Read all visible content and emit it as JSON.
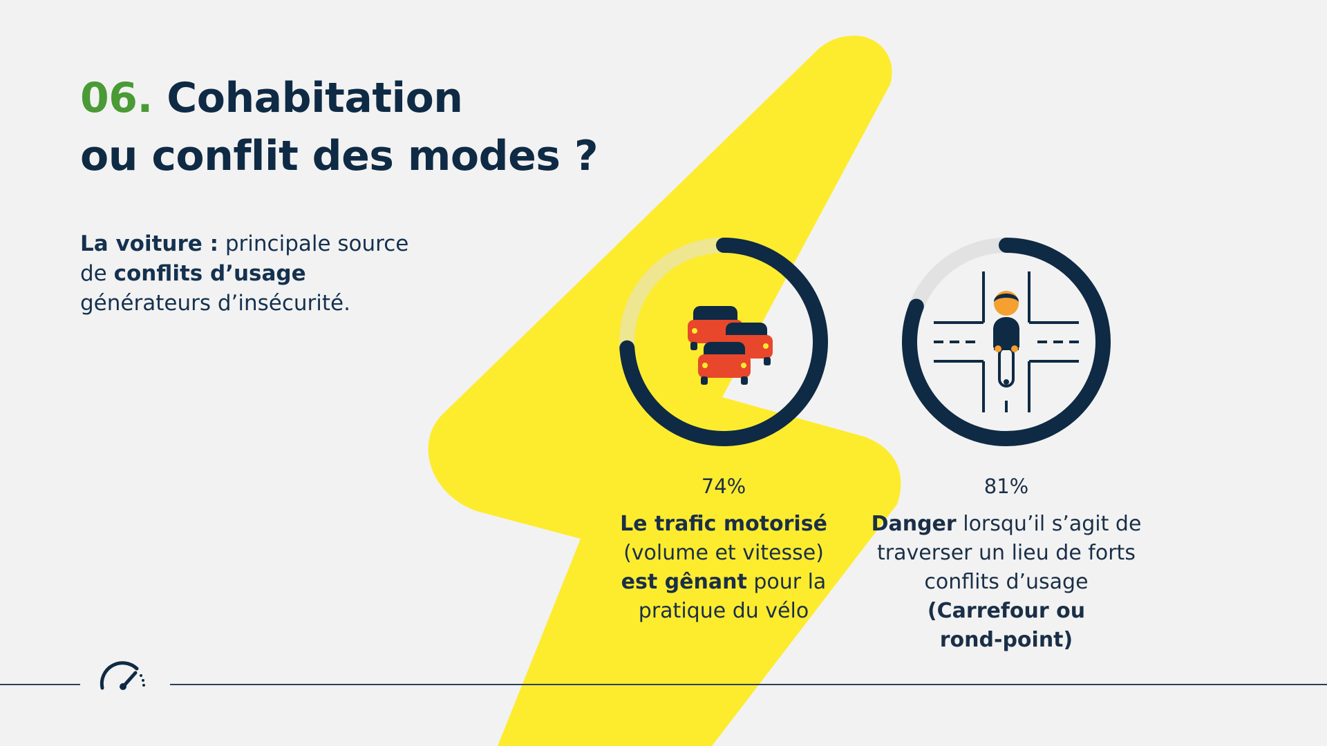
{
  "title": {
    "number": "06.",
    "line1": "Cohabitation",
    "line2": "ou conflit des modes ?"
  },
  "intro": {
    "bold1": "La voiture :",
    "text1": " principale source",
    "text2": "de ",
    "bold2": "conflits d’usage",
    "text3": "générateurs d’insécurité."
  },
  "colors": {
    "navy": "#0f2a44",
    "green": "#4a9a35",
    "yellow": "#fdec2e",
    "track": "#e2e2e2",
    "car_red": "#e8472b",
    "skin": "#f5a030"
  },
  "chart_data": {
    "type": "pie",
    "series": [
      {
        "value": 74,
        "label": "74%",
        "icon": "cars-traffic-icon",
        "caption": [
          {
            "bold": "Le trafic motorisé",
            "text": ""
          },
          {
            "bold": "",
            "text": "(volume et vitesse)"
          },
          {
            "bold": "est gênant",
            "text": " pour la"
          },
          {
            "bold": "",
            "text": "pratique du vélo"
          }
        ]
      },
      {
        "value": 81,
        "label": "81%",
        "icon": "cyclist-crossroad-icon",
        "caption": [
          {
            "bold": "Danger",
            "text": " lorsqu’il s’agit de"
          },
          {
            "bold": "",
            "text": "traverser un lieu de forts"
          },
          {
            "bold": "",
            "text": "conflits d’usage"
          },
          {
            "bold": "(Carrefour ou",
            "text": ""
          },
          {
            "bold": "rond-point)",
            "text": ""
          }
        ]
      }
    ]
  },
  "footer": {
    "icon": "speedometer-icon"
  }
}
